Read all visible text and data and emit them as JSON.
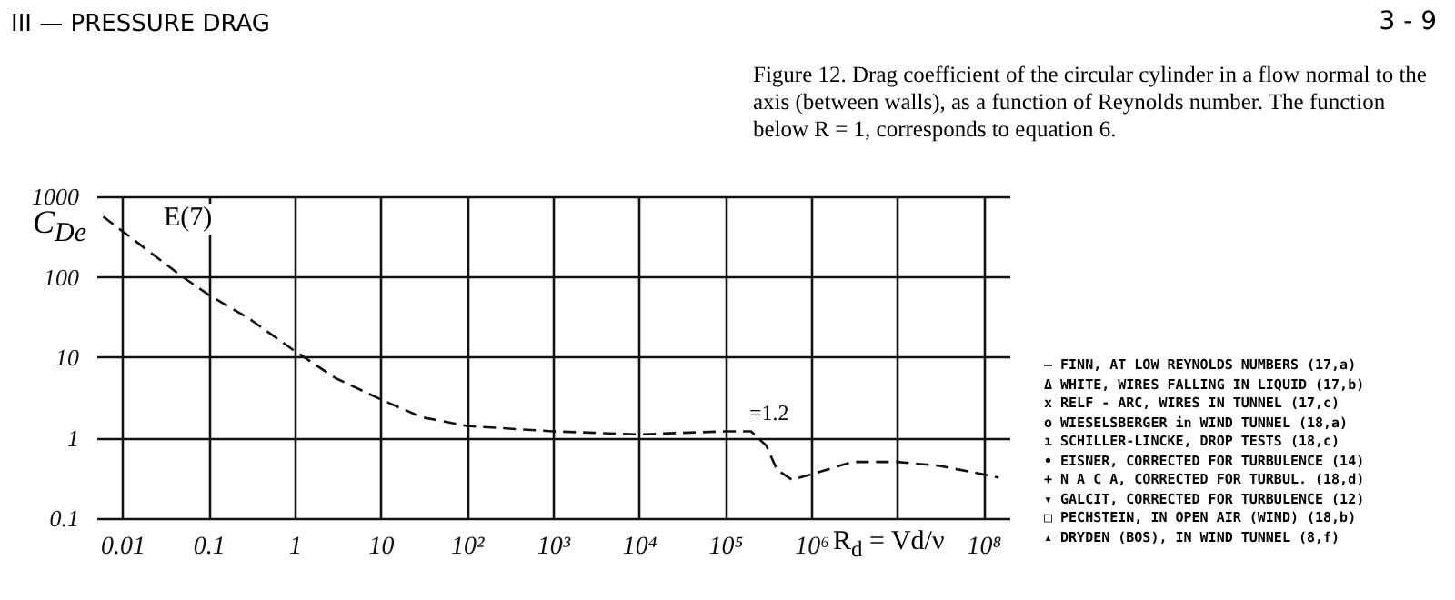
{
  "chart_data": {
    "type": "line",
    "title": "Figure 12.  Drag coefficient of the circular cylinder in a flow normal to the axis (between walls), as a function of Reynolds number. The function below R = 1, corresponds to equation 6.",
    "xlabel": "R$_{d}$ = Vd/ν",
    "ylabel": "C$_{De}$",
    "x": [
      0.006,
      0.05,
      0.1,
      0.3,
      1,
      3,
      10,
      30,
      100,
      1000,
      10000,
      100000,
      200000,
      300000,
      400000,
      600000,
      1000000,
      3000000,
      10000000,
      30000000,
      100000000,
      150000000
    ],
    "series": [
      {
        "color": "#111111",
        "values": [
          560,
          100,
          60,
          30,
          12,
          5.5,
          3,
          1.8,
          1.4,
          1.2,
          1.1,
          1.2,
          1.2,
          0.8,
          0.4,
          0.3,
          0.35,
          0.5,
          0.5,
          0.45,
          0.35,
          0.32
        ]
      }
    ],
    "log": "xy",
    "xlim": [
      0.005,
      200000000
    ],
    "ylim": [
      0.1,
      1000
    ],
    "xticks": [
      0.01,
      0.1,
      {
        "value": 1,
        "label": "1"
      },
      10,
      {
        "value": 100,
        "label": "10²"
      },
      {
        "value": 1000,
        "label": "10³"
      },
      {
        "value": 10000,
        "label": "10⁴"
      },
      {
        "value": 100000,
        "label": "10⁵"
      },
      {
        "value": 1000000,
        "label": "10⁶"
      },
      {
        "value": 10000000,
        "label": null
      },
      {
        "value": 100000000,
        "label": "10⁸"
      }
    ],
    "yticks": [
      0.1,
      1,
      10,
      100,
      1000
    ],
    "grid": true,
    "line_style": "dashed",
    "marker": "none",
    "annotations": [
      "III — PRESSURE DRAG",
      "3 - 9",
      "— FINN, AT LOW REYNOLDS NUMBERS (17,a)",
      "Δ WHITE, WIRES FALLING IN LIQUID (17,b)",
      "x RELF - ARC, WIRES IN TUNNEL (17,c)",
      "o WIESELSBERGER in WIND TUNNEL (18,a)",
      "ı SCHILLER-LINCKE, DROP TESTS (18,c)",
      "• EISNER, CORRECTED FOR TURBULENCE (14)",
      "+ N A C A, CORRECTED FOR TURBUL. (18,d)",
      "▾ GALCIT, CORRECTED FOR TURBULENCE (12)",
      "□ PECHSTEIN, IN OPEN AIR (WIND) (18,b)",
      "▴ DRYDEN (BOS), IN WIND TUNNEL (8,f)",
      "E(7)",
      "=1.2"
    ]
  }
}
